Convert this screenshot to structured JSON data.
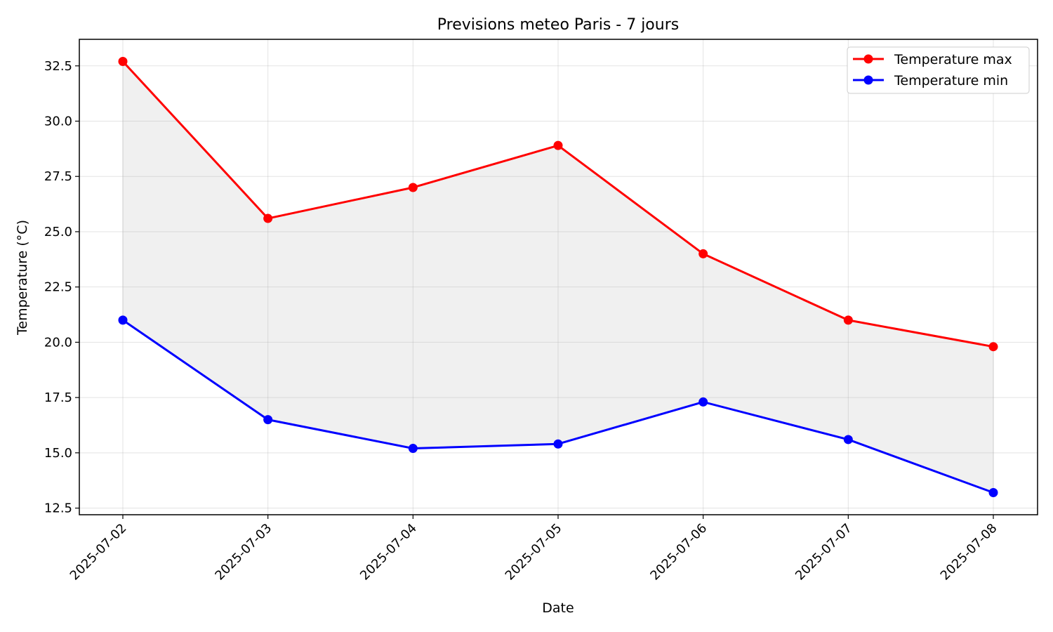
{
  "chart_data": {
    "type": "line",
    "title": "Previsions meteo Paris - 7 jours",
    "xlabel": "Date",
    "ylabel": "Temperature (°C)",
    "categories": [
      "2025-07-02",
      "2025-07-03",
      "2025-07-04",
      "2025-07-05",
      "2025-07-06",
      "2025-07-07",
      "2025-07-08"
    ],
    "series": [
      {
        "name": "Temperature max",
        "color": "#ff0000",
        "values": [
          32.7,
          25.6,
          27.0,
          28.9,
          24.0,
          21.0,
          19.8
        ]
      },
      {
        "name": "Temperature min",
        "color": "#0000ff",
        "values": [
          21.0,
          16.5,
          15.2,
          15.4,
          17.3,
          15.6,
          13.2
        ]
      }
    ],
    "fill_between": {
      "color": "#f0f0f0"
    },
    "ylim": [
      12.2,
      33.7
    ],
    "yticks": [
      12.5,
      15.0,
      17.5,
      20.0,
      22.5,
      25.0,
      27.5,
      30.0,
      32.5
    ],
    "ytick_labels": [
      "12.5",
      "15.0",
      "17.5",
      "20.0",
      "22.5",
      "25.0",
      "27.5",
      "30.0",
      "32.5"
    ],
    "grid": true,
    "legend_position": "top-right"
  }
}
